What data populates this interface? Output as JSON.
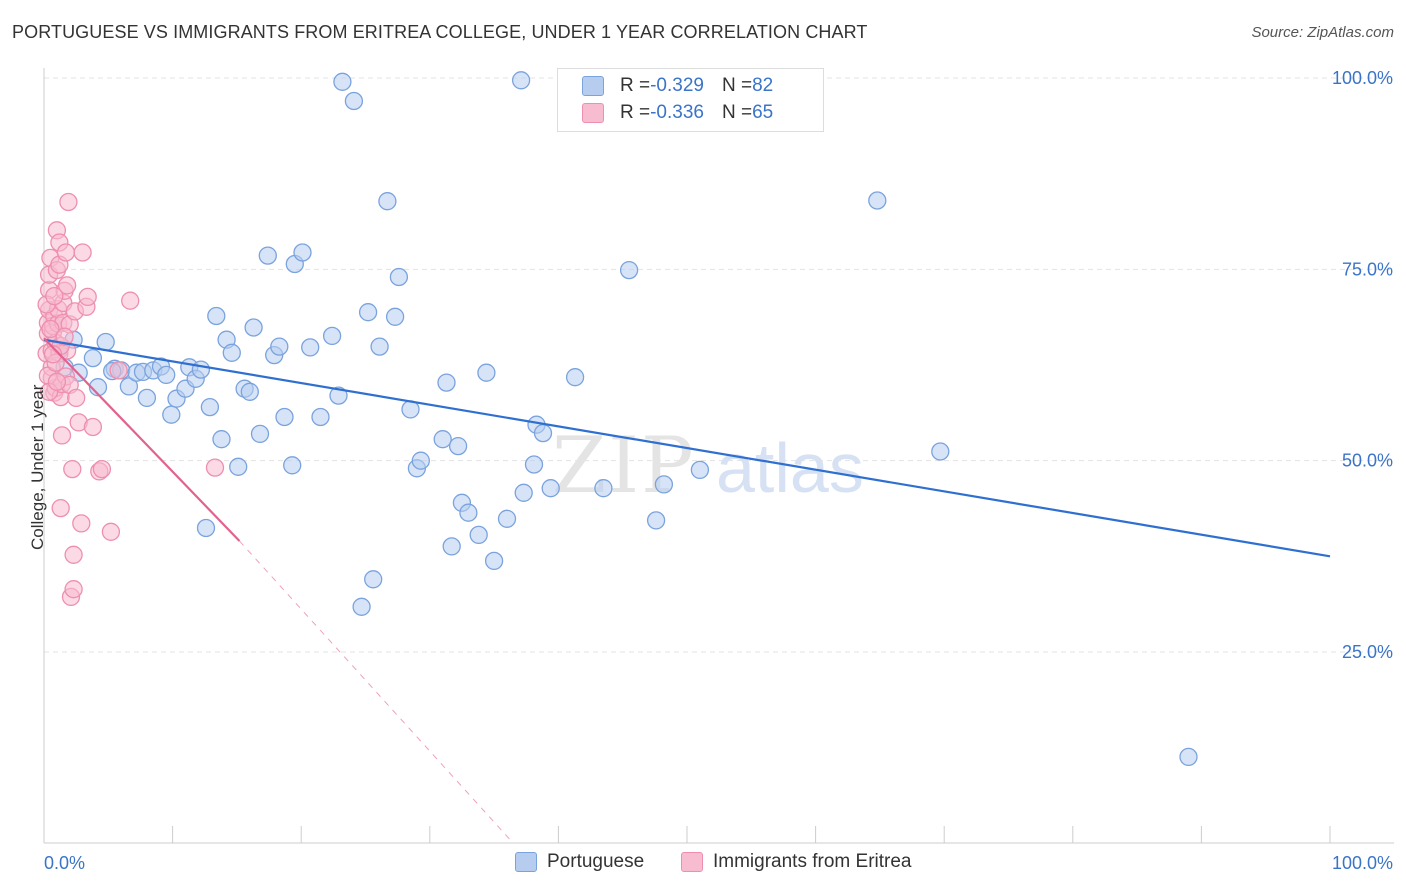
{
  "header": {
    "title": "PORTUGUESE VS IMMIGRANTS FROM ERITREA COLLEGE, UNDER 1 YEAR CORRELATION CHART",
    "source": "Source: ZipAtlas.com"
  },
  "watermark": {
    "part1": "ZIP",
    "part2": "atlas"
  },
  "legend": {
    "rows": [
      {
        "r_label": "R = ",
        "r_value": "-0.329",
        "n_label": "N = ",
        "n_value": "82"
      },
      {
        "r_label": "R = ",
        "r_value": "-0.336",
        "n_label": "N = ",
        "n_value": "65"
      }
    ]
  },
  "bottom_legend": {
    "series1": "Portuguese",
    "series2": "Immigrants from Eritrea"
  },
  "colors": {
    "portuguese_fill": "#b7cdf0",
    "portuguese_stroke": "#7aa3de",
    "portuguese_line": "#2f6fd0",
    "eritrea_fill": "#f7bcd0",
    "eritrea_stroke": "#ee8fae",
    "eritrea_line": "#e2628f",
    "tick_label": "#3a74c8",
    "grid": "#e3e3e3"
  },
  "chart_data": {
    "type": "scatter",
    "title": "PORTUGUESE VS IMMIGRANTS FROM ERITREA COLLEGE, UNDER 1 YEAR CORRELATION CHART",
    "xlabel": "",
    "ylabel": "College, Under 1 year",
    "xlim": [
      0,
      100
    ],
    "ylim": [
      0,
      102
    ],
    "x_tick_labels": [
      "0.0%",
      "100.0%"
    ],
    "y_ticks": [
      25,
      50,
      75,
      100
    ],
    "y_tick_labels": [
      "25.0%",
      "50.0%",
      "75.0%",
      "100.0%"
    ],
    "grid": true,
    "legend_position": "top-center",
    "series": [
      {
        "name": "Portuguese",
        "r": -0.329,
        "n": 82,
        "trend": {
          "x": [
            0,
            100
          ],
          "y": [
            65.8,
            37.5
          ],
          "style": "solid"
        },
        "points": [
          [
            1.2,
            64.5
          ],
          [
            2.3,
            65.8
          ],
          [
            2.7,
            61.5
          ],
          [
            3.8,
            63.4
          ],
          [
            4.2,
            59.6
          ],
          [
            4.8,
            65.5
          ],
          [
            5.5,
            62.0
          ],
          [
            6.0,
            61.8
          ],
          [
            6.6,
            59.7
          ],
          [
            7.2,
            61.5
          ],
          [
            7.7,
            61.6
          ],
          [
            8.0,
            58.2
          ],
          [
            8.5,
            61.8
          ],
          [
            9.1,
            62.3
          ],
          [
            9.5,
            61.2
          ],
          [
            9.9,
            56.0
          ],
          [
            10.3,
            58.1
          ],
          [
            11.0,
            59.4
          ],
          [
            11.3,
            62.2
          ],
          [
            11.8,
            60.7
          ],
          [
            12.2,
            61.9
          ],
          [
            12.6,
            41.2
          ],
          [
            12.9,
            57.0
          ],
          [
            13.4,
            68.9
          ],
          [
            13.8,
            52.8
          ],
          [
            14.2,
            65.8
          ],
          [
            14.6,
            64.1
          ],
          [
            15.1,
            49.2
          ],
          [
            15.6,
            59.4
          ],
          [
            16.0,
            59.0
          ],
          [
            16.3,
            67.4
          ],
          [
            16.8,
            53.5
          ],
          [
            17.4,
            76.8
          ],
          [
            17.9,
            63.8
          ],
          [
            18.3,
            64.9
          ],
          [
            18.7,
            55.7
          ],
          [
            19.3,
            49.4
          ],
          [
            19.5,
            75.7
          ],
          [
            20.1,
            77.2
          ],
          [
            20.7,
            64.8
          ],
          [
            21.5,
            55.7
          ],
          [
            22.4,
            66.3
          ],
          [
            22.9,
            58.5
          ],
          [
            23.2,
            99.5
          ],
          [
            24.1,
            97.0
          ],
          [
            24.7,
            30.9
          ],
          [
            25.2,
            69.4
          ],
          [
            25.6,
            34.5
          ],
          [
            26.1,
            64.9
          ],
          [
            26.7,
            83.9
          ],
          [
            27.3,
            68.8
          ],
          [
            27.6,
            74.0
          ],
          [
            28.5,
            56.7
          ],
          [
            29.0,
            49.0
          ],
          [
            29.3,
            50.0
          ],
          [
            31.0,
            52.8
          ],
          [
            31.3,
            60.2
          ],
          [
            31.7,
            38.8
          ],
          [
            32.2,
            51.9
          ],
          [
            32.5,
            44.5
          ],
          [
            33.0,
            43.2
          ],
          [
            33.8,
            40.3
          ],
          [
            34.4,
            61.5
          ],
          [
            35.0,
            36.9
          ],
          [
            36.0,
            42.4
          ],
          [
            37.1,
            99.7
          ],
          [
            37.3,
            45.8
          ],
          [
            38.1,
            49.5
          ],
          [
            38.3,
            54.7
          ],
          [
            38.8,
            53.6
          ],
          [
            39.4,
            46.4
          ],
          [
            41.3,
            60.9
          ],
          [
            43.5,
            46.4
          ],
          [
            45.5,
            74.9
          ],
          [
            47.6,
            42.2
          ],
          [
            48.2,
            46.9
          ],
          [
            51.0,
            48.8
          ],
          [
            64.8,
            84.0
          ],
          [
            69.7,
            51.2
          ],
          [
            89.0,
            11.3
          ],
          [
            1.6,
            62.2
          ],
          [
            5.3,
            61.7
          ]
        ]
      },
      {
        "name": "Immigrants from Eritrea",
        "r": -0.336,
        "n": 65,
        "trend": {
          "x": [
            0,
            15.2
          ],
          "y": [
            66.0,
            39.5
          ],
          "style": "solid",
          "dashed_extension": {
            "x": [
              15.2,
              36.5
            ],
            "y": [
              39.5,
              0
            ]
          }
        },
        "points": [
          [
            0.2,
            64.0
          ],
          [
            0.3,
            66.6
          ],
          [
            0.3,
            68.0
          ],
          [
            0.4,
            69.7
          ],
          [
            0.4,
            72.3
          ],
          [
            0.4,
            74.3
          ],
          [
            0.5,
            76.5
          ],
          [
            0.6,
            60.8
          ],
          [
            0.6,
            62.2
          ],
          [
            0.6,
            64.4
          ],
          [
            0.7,
            66.8
          ],
          [
            0.7,
            67.6
          ],
          [
            0.8,
            68.8
          ],
          [
            0.8,
            58.9
          ],
          [
            0.9,
            59.5
          ],
          [
            0.9,
            65.4
          ],
          [
            1.0,
            74.9
          ],
          [
            1.0,
            80.1
          ],
          [
            1.1,
            67.9
          ],
          [
            1.1,
            69.8
          ],
          [
            1.2,
            75.6
          ],
          [
            1.2,
            78.5
          ],
          [
            1.2,
            64.0
          ],
          [
            1.3,
            43.8
          ],
          [
            1.3,
            58.3
          ],
          [
            1.4,
            53.3
          ],
          [
            1.4,
            60.0
          ],
          [
            1.5,
            68.0
          ],
          [
            1.5,
            70.6
          ],
          [
            1.6,
            72.2
          ],
          [
            1.7,
            77.2
          ],
          [
            1.7,
            61.0
          ],
          [
            1.8,
            72.9
          ],
          [
            1.8,
            64.4
          ],
          [
            1.9,
            83.8
          ],
          [
            2.0,
            67.8
          ],
          [
            2.0,
            59.9
          ],
          [
            2.1,
            32.2
          ],
          [
            2.2,
            48.9
          ],
          [
            2.3,
            37.7
          ],
          [
            2.3,
            33.2
          ],
          [
            2.4,
            69.5
          ],
          [
            2.5,
            58.2
          ],
          [
            2.7,
            55.0
          ],
          [
            2.9,
            41.8
          ],
          [
            3.0,
            77.2
          ],
          [
            3.3,
            70.1
          ],
          [
            3.4,
            71.4
          ],
          [
            3.8,
            54.4
          ],
          [
            4.3,
            48.6
          ],
          [
            4.5,
            48.9
          ],
          [
            5.2,
            40.7
          ],
          [
            5.8,
            61.8
          ],
          [
            6.7,
            70.9
          ],
          [
            13.3,
            49.1
          ],
          [
            0.3,
            61.1
          ],
          [
            0.5,
            67.2
          ],
          [
            0.9,
            62.8
          ],
          [
            1.3,
            65.0
          ],
          [
            0.2,
            70.4
          ],
          [
            0.7,
            63.9
          ],
          [
            0.4,
            59.0
          ],
          [
            1.6,
            66.2
          ],
          [
            0.8,
            71.5
          ],
          [
            1.0,
            60.3
          ]
        ]
      }
    ]
  }
}
